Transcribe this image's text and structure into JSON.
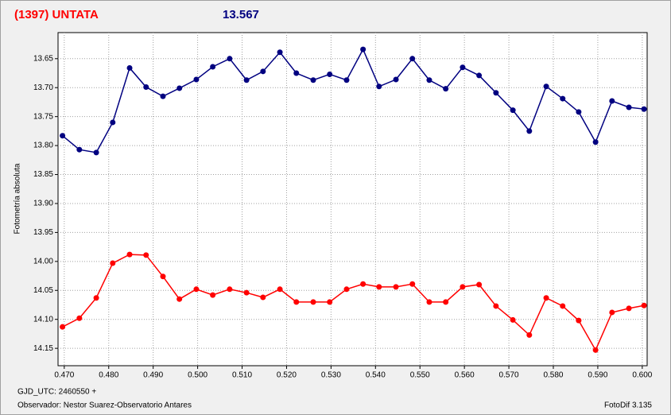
{
  "chart_data": {
    "type": "line",
    "title": "(1397) UNTATA",
    "subtitle": "13.567",
    "ylabel": "Fotometría absoluta",
    "xlabel": "GJD_UTC: 2460550 +",
    "observer": "Observador: Nestor Suarez-Observatorio Antares",
    "software": "FotoDif 3.135",
    "grid": true,
    "x": [
      0.4696,
      0.4734,
      0.4772,
      0.4809,
      0.4847,
      0.4884,
      0.4922,
      0.4959,
      0.4997,
      0.5034,
      0.5072,
      0.511,
      0.5147,
      0.5185,
      0.5222,
      0.526,
      0.5297,
      0.5335,
      0.5372,
      0.5408,
      0.5446,
      0.5483,
      0.5521,
      0.5558,
      0.5596,
      0.5633,
      0.5671,
      0.5709,
      0.5746,
      0.5784,
      0.5821,
      0.5857,
      0.5895,
      0.5932,
      0.597,
      0.6004
    ],
    "series": [
      {
        "color": "#000080",
        "values": [
          13.783,
          13.807,
          13.812,
          13.76,
          13.666,
          13.699,
          13.715,
          13.701,
          13.686,
          13.664,
          13.65,
          13.687,
          13.672,
          13.639,
          13.675,
          13.687,
          13.677,
          13.687,
          13.634,
          13.698,
          13.686,
          13.65,
          13.687,
          13.702,
          13.665,
          13.679,
          13.709,
          13.739,
          13.775,
          13.698,
          13.719,
          13.742,
          13.794,
          13.723,
          13.734,
          13.737
        ]
      },
      {
        "color": "#ff0000",
        "values": [
          14.113,
          14.098,
          14.063,
          14.003,
          13.988,
          13.989,
          14.026,
          14.065,
          14.048,
          14.058,
          14.048,
          14.054,
          14.062,
          14.048,
          14.07,
          14.07,
          14.07,
          14.048,
          14.039,
          14.044,
          14.044,
          14.039,
          14.07,
          14.07,
          14.044,
          14.04,
          14.077,
          14.101,
          14.127,
          14.063,
          14.077,
          14.102,
          14.153,
          14.088,
          14.081,
          14.076
        ]
      }
    ],
    "xlim": [
      0.4686,
      0.6011
    ],
    "ylim": [
      14.18,
      13.605
    ],
    "xticks": [
      {
        "value": 0.47,
        "label": "0.470"
      },
      {
        "value": 0.48,
        "label": "0.480"
      },
      {
        "value": 0.49,
        "label": "0.490"
      },
      {
        "value": 0.5,
        "label": "0.500"
      },
      {
        "value": 0.51,
        "label": "0.510"
      },
      {
        "value": 0.52,
        "label": "0.520"
      },
      {
        "value": 0.53,
        "label": "0.530"
      },
      {
        "value": 0.54,
        "label": "0.540"
      },
      {
        "value": 0.55,
        "label": "0.550"
      },
      {
        "value": 0.56,
        "label": "0.560"
      },
      {
        "value": 0.57,
        "label": "0.570"
      },
      {
        "value": 0.58,
        "label": "0.580"
      },
      {
        "value": 0.59,
        "label": "0.590"
      },
      {
        "value": 0.6,
        "label": "0.600"
      }
    ],
    "yticks": [
      13.65,
      {
        "value": 13.7,
        "label": "13.70"
      },
      13.75,
      {
        "value": 13.8,
        "label": "13.80"
      },
      13.85,
      {
        "value": 13.9,
        "label": "13.90"
      },
      13.95,
      {
        "value": 14.0,
        "label": "14.00"
      },
      14.05,
      {
        "value": 14.1,
        "label": "14.10"
      },
      14.15
    ]
  }
}
